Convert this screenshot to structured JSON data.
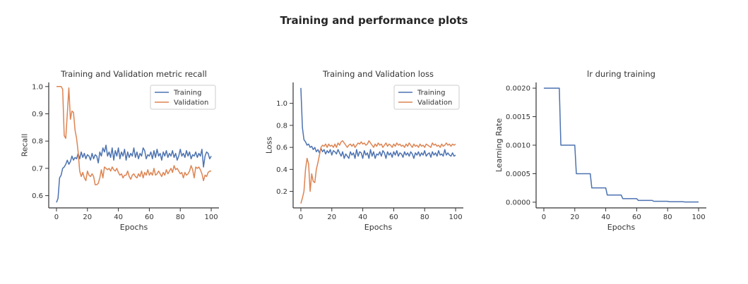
{
  "suptitle": "Training and performance plots",
  "colors": {
    "training": "#4c72b0",
    "validation": "#dd8452",
    "axis": "#333333"
  },
  "chart_data": [
    {
      "type": "line",
      "title": "Training and Validation metric recall",
      "xlabel": "Epochs",
      "ylabel": "Recall",
      "xlim": [
        -5,
        105
      ],
      "ylim": [
        0.555,
        1.015
      ],
      "xticks": [
        0,
        20,
        40,
        60,
        80,
        100
      ],
      "yticks": [
        0.6,
        0.7,
        0.8,
        0.9,
        1.0
      ],
      "ytick_labels": [
        "0.6",
        "0.7",
        "0.8",
        "0.9",
        "1.0"
      ],
      "legend": "upper right",
      "series": [
        {
          "name": "Training",
          "color": "#4c72b0",
          "x": [
            0,
            1,
            2,
            3,
            4,
            5,
            6,
            7,
            8,
            9,
            10,
            11,
            12,
            13,
            14,
            15,
            16,
            17,
            18,
            19,
            20,
            21,
            22,
            23,
            24,
            25,
            26,
            27,
            28,
            29,
            30,
            31,
            32,
            33,
            34,
            35,
            36,
            37,
            38,
            39,
            40,
            41,
            42,
            43,
            44,
            45,
            46,
            47,
            48,
            49,
            50,
            51,
            52,
            53,
            54,
            55,
            56,
            57,
            58,
            59,
            60,
            61,
            62,
            63,
            64,
            65,
            66,
            67,
            68,
            69,
            70,
            71,
            72,
            73,
            74,
            75,
            76,
            77,
            78,
            79,
            80,
            81,
            82,
            83,
            84,
            85,
            86,
            87,
            88,
            89,
            90,
            91,
            92,
            93,
            94,
            95,
            96,
            97,
            98,
            99,
            100
          ],
          "y": [
            0.575,
            0.59,
            0.665,
            0.675,
            0.7,
            0.705,
            0.715,
            0.73,
            0.715,
            0.725,
            0.745,
            0.73,
            0.74,
            0.735,
            0.755,
            0.735,
            0.76,
            0.74,
            0.755,
            0.735,
            0.75,
            0.745,
            0.73,
            0.755,
            0.735,
            0.75,
            0.745,
            0.72,
            0.76,
            0.745,
            0.775,
            0.76,
            0.785,
            0.745,
            0.76,
            0.74,
            0.775,
            0.73,
            0.765,
            0.745,
            0.775,
            0.735,
            0.76,
            0.745,
            0.77,
            0.73,
            0.76,
            0.74,
            0.755,
            0.745,
            0.775,
            0.74,
            0.76,
            0.735,
            0.755,
            0.745,
            0.775,
            0.765,
            0.735,
            0.75,
            0.745,
            0.76,
            0.735,
            0.765,
            0.74,
            0.77,
            0.745,
            0.755,
            0.73,
            0.76,
            0.745,
            0.765,
            0.74,
            0.755,
            0.745,
            0.765,
            0.74,
            0.755,
            0.73,
            0.745,
            0.77,
            0.745,
            0.755,
            0.74,
            0.765,
            0.745,
            0.76,
            0.735,
            0.75,
            0.745,
            0.76,
            0.74,
            0.755,
            0.745,
            0.77,
            0.705,
            0.745,
            0.76,
            0.755,
            0.735,
            0.745
          ]
        },
        {
          "name": "Validation",
          "color": "#dd8452",
          "x": [
            0,
            1,
            2,
            3,
            4,
            5,
            6,
            7,
            8,
            9,
            10,
            11,
            12,
            13,
            14,
            15,
            16,
            17,
            18,
            19,
            20,
            21,
            22,
            23,
            24,
            25,
            26,
            27,
            28,
            29,
            30,
            31,
            32,
            33,
            34,
            35,
            36,
            37,
            38,
            39,
            40,
            41,
            42,
            43,
            44,
            45,
            46,
            47,
            48,
            49,
            50,
            51,
            52,
            53,
            54,
            55,
            56,
            57,
            58,
            59,
            60,
            61,
            62,
            63,
            64,
            65,
            66,
            67,
            68,
            69,
            70,
            71,
            72,
            73,
            74,
            75,
            76,
            77,
            78,
            79,
            80,
            81,
            82,
            83,
            84,
            85,
            86,
            87,
            88,
            89,
            90,
            91,
            92,
            93,
            94,
            95,
            96,
            97,
            98,
            99,
            100
          ],
          "y": [
            1.0,
            1.0,
            1.0,
            1.0,
            0.99,
            0.82,
            0.81,
            0.9,
            0.995,
            0.88,
            0.91,
            0.905,
            0.84,
            0.81,
            0.76,
            0.69,
            0.67,
            0.685,
            0.665,
            0.655,
            0.69,
            0.675,
            0.67,
            0.68,
            0.67,
            0.64,
            0.64,
            0.645,
            0.665,
            0.695,
            0.665,
            0.705,
            0.7,
            0.695,
            0.7,
            0.69,
            0.705,
            0.695,
            0.69,
            0.7,
            0.685,
            0.675,
            0.68,
            0.665,
            0.675,
            0.675,
            0.69,
            0.67,
            0.66,
            0.675,
            0.68,
            0.67,
            0.665,
            0.68,
            0.67,
            0.69,
            0.665,
            0.685,
            0.675,
            0.695,
            0.675,
            0.685,
            0.675,
            0.7,
            0.675,
            0.68,
            0.69,
            0.68,
            0.67,
            0.685,
            0.675,
            0.695,
            0.68,
            0.69,
            0.7,
            0.685,
            0.71,
            0.695,
            0.7,
            0.69,
            0.68,
            0.685,
            0.665,
            0.685,
            0.675,
            0.68,
            0.69,
            0.71,
            0.695,
            0.665,
            0.705,
            0.7,
            0.705,
            0.695,
            0.68,
            0.655,
            0.675,
            0.67,
            0.685,
            0.69,
            0.69
          ]
        }
      ]
    },
    {
      "type": "line",
      "title": "Training and Validation loss",
      "xlabel": "Epochs",
      "ylabel": "Loss",
      "xlim": [
        -5,
        105
      ],
      "ylim": [
        0.05,
        1.19
      ],
      "xticks": [
        0,
        20,
        40,
        60,
        80,
        100
      ],
      "yticks": [
        0.2,
        0.4,
        0.6,
        0.8,
        1.0
      ],
      "ytick_labels": [
        "0.2",
        "0.4",
        "0.6",
        "0.8",
        "1.0"
      ],
      "legend": "upper right",
      "series": [
        {
          "name": "Training",
          "color": "#4c72b0",
          "x": [
            0,
            1,
            2,
            3,
            4,
            5,
            6,
            7,
            8,
            9,
            10,
            11,
            12,
            13,
            14,
            15,
            16,
            17,
            18,
            19,
            20,
            21,
            22,
            23,
            24,
            25,
            26,
            27,
            28,
            29,
            30,
            31,
            32,
            33,
            34,
            35,
            36,
            37,
            38,
            39,
            40,
            41,
            42,
            43,
            44,
            45,
            46,
            47,
            48,
            49,
            50,
            51,
            52,
            53,
            54,
            55,
            56,
            57,
            58,
            59,
            60,
            61,
            62,
            63,
            64,
            65,
            66,
            67,
            68,
            69,
            70,
            71,
            72,
            73,
            74,
            75,
            76,
            77,
            78,
            79,
            80,
            81,
            82,
            83,
            84,
            85,
            86,
            87,
            88,
            89,
            90,
            91,
            92,
            93,
            94,
            95,
            96,
            97,
            98,
            99,
            100
          ],
          "y": [
            1.14,
            0.78,
            0.67,
            0.65,
            0.62,
            0.63,
            0.6,
            0.61,
            0.58,
            0.6,
            0.56,
            0.58,
            0.55,
            0.59,
            0.56,
            0.58,
            0.54,
            0.57,
            0.55,
            0.58,
            0.53,
            0.57,
            0.56,
            0.54,
            0.58,
            0.55,
            0.52,
            0.56,
            0.5,
            0.54,
            0.52,
            0.5,
            0.56,
            0.53,
            0.55,
            0.5,
            0.58,
            0.52,
            0.56,
            0.55,
            0.5,
            0.57,
            0.53,
            0.55,
            0.5,
            0.58,
            0.52,
            0.56,
            0.5,
            0.54,
            0.53,
            0.56,
            0.52,
            0.57,
            0.55,
            0.5,
            0.56,
            0.53,
            0.55,
            0.51,
            0.56,
            0.53,
            0.57,
            0.52,
            0.55,
            0.54,
            0.51,
            0.56,
            0.53,
            0.55,
            0.52,
            0.56,
            0.54,
            0.5,
            0.55,
            0.53,
            0.56,
            0.52,
            0.55,
            0.53,
            0.57,
            0.52,
            0.54,
            0.55,
            0.51,
            0.56,
            0.53,
            0.55,
            0.52,
            0.57,
            0.53,
            0.54,
            0.52,
            0.58,
            0.53,
            0.55,
            0.53,
            0.52,
            0.55,
            0.52,
            0.53
          ]
        },
        {
          "name": "Validation",
          "color": "#dd8452",
          "x": [
            0,
            1,
            2,
            3,
            4,
            5,
            6,
            7,
            8,
            9,
            10,
            11,
            12,
            13,
            14,
            15,
            16,
            17,
            18,
            19,
            20,
            21,
            22,
            23,
            24,
            25,
            26,
            27,
            28,
            29,
            30,
            31,
            32,
            33,
            34,
            35,
            36,
            37,
            38,
            39,
            40,
            41,
            42,
            43,
            44,
            45,
            46,
            47,
            48,
            49,
            50,
            51,
            52,
            53,
            54,
            55,
            56,
            57,
            58,
            59,
            60,
            61,
            62,
            63,
            64,
            65,
            66,
            67,
            68,
            69,
            70,
            71,
            72,
            73,
            74,
            75,
            76,
            77,
            78,
            79,
            80,
            81,
            82,
            83,
            84,
            85,
            86,
            87,
            88,
            89,
            90,
            91,
            92,
            93,
            94,
            95,
            96,
            97,
            98,
            99,
            100
          ],
          "y": [
            0.09,
            0.14,
            0.2,
            0.4,
            0.5,
            0.45,
            0.2,
            0.36,
            0.29,
            0.28,
            0.4,
            0.46,
            0.53,
            0.6,
            0.62,
            0.61,
            0.63,
            0.6,
            0.63,
            0.61,
            0.62,
            0.6,
            0.63,
            0.6,
            0.64,
            0.62,
            0.65,
            0.66,
            0.64,
            0.62,
            0.6,
            0.62,
            0.63,
            0.61,
            0.63,
            0.6,
            0.62,
            0.64,
            0.63,
            0.65,
            0.63,
            0.64,
            0.62,
            0.63,
            0.66,
            0.64,
            0.62,
            0.6,
            0.63,
            0.61,
            0.64,
            0.62,
            0.63,
            0.6,
            0.62,
            0.64,
            0.61,
            0.63,
            0.62,
            0.6,
            0.63,
            0.61,
            0.64,
            0.62,
            0.63,
            0.61,
            0.62,
            0.6,
            0.63,
            0.61,
            0.64,
            0.62,
            0.6,
            0.63,
            0.61,
            0.62,
            0.6,
            0.63,
            0.61,
            0.62,
            0.6,
            0.63,
            0.62,
            0.61,
            0.6,
            0.64,
            0.62,
            0.63,
            0.61,
            0.62,
            0.6,
            0.63,
            0.61,
            0.62,
            0.64,
            0.62,
            0.63,
            0.61,
            0.63,
            0.62,
            0.63
          ]
        }
      ]
    },
    {
      "type": "line",
      "title": "lr during training",
      "xlabel": "Epochs",
      "ylabel": "Learning Rate",
      "xlim": [
        -5,
        105
      ],
      "ylim": [
        -0.0001,
        0.0021
      ],
      "xticks": [
        0,
        20,
        40,
        60,
        80,
        100
      ],
      "yticks": [
        0,
        0.0005,
        0.001,
        0.0015,
        0.002
      ],
      "ytick_labels": [
        "0.0000",
        "0.0005",
        "0.0010",
        "0.0015",
        "0.0020"
      ],
      "legend": "none",
      "series": [
        {
          "name": "",
          "color": "#4c72b0",
          "x": [
            0,
            10,
            11,
            20,
            21,
            30,
            31,
            40,
            41,
            50,
            51,
            60,
            61,
            70,
            71,
            80,
            81,
            90,
            91,
            100
          ],
          "y": [
            0.002,
            0.002,
            0.001,
            0.001,
            0.0005,
            0.0005,
            0.00025,
            0.00025,
            0.000125,
            0.000125,
            6.25e-05,
            6.25e-05,
            3.13e-05,
            3.13e-05,
            1.56e-05,
            1.56e-05,
            7.8e-06,
            7.8e-06,
            3.9e-06,
            3.9e-06
          ]
        }
      ]
    }
  ]
}
